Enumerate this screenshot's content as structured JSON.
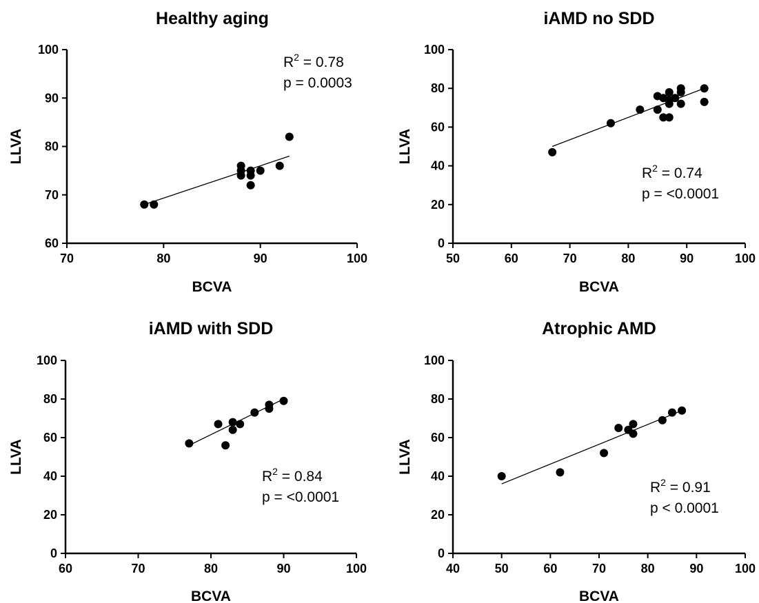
{
  "chart_data": [
    {
      "type": "scatter",
      "title": "Healthy aging",
      "xlabel": "BCVA",
      "ylabel": "LLVA",
      "xlim": [
        70,
        100
      ],
      "ylim": [
        60,
        100
      ],
      "xticks": [
        70,
        80,
        90,
        100
      ],
      "yticks": [
        60,
        70,
        80,
        90,
        100
      ],
      "points": [
        [
          78,
          68
        ],
        [
          79,
          68
        ],
        [
          88,
          74
        ],
        [
          88,
          75
        ],
        [
          88,
          76
        ],
        [
          89,
          72
        ],
        [
          89,
          74
        ],
        [
          89,
          75
        ],
        [
          90,
          75
        ],
        [
          92,
          76
        ],
        [
          93,
          82
        ]
      ],
      "fit": {
        "x1": 78,
        "y1": 68,
        "x2": 93,
        "y2": 78
      },
      "r2_label": "R",
      "r2_sup": "2",
      "r2_value": " = 0.78",
      "p_text": "p = 0.0003"
    },
    {
      "type": "scatter",
      "title": "iAMD no SDD",
      "xlabel": "BCVA",
      "ylabel": "LLVA",
      "xlim": [
        50,
        100
      ],
      "ylim": [
        0,
        100
      ],
      "xticks": [
        50,
        60,
        70,
        80,
        90,
        100
      ],
      "yticks": [
        0,
        20,
        40,
        60,
        80,
        100
      ],
      "points": [
        [
          67,
          47
        ],
        [
          77,
          62
        ],
        [
          82,
          69
        ],
        [
          85,
          69
        ],
        [
          85,
          76
        ],
        [
          86,
          65
        ],
        [
          86,
          75
        ],
        [
          87,
          65
        ],
        [
          87,
          72
        ],
        [
          87,
          74
        ],
        [
          87,
          78
        ],
        [
          88,
          75
        ],
        [
          89,
          72
        ],
        [
          89,
          78
        ],
        [
          89,
          80
        ],
        [
          93,
          73
        ],
        [
          93,
          80
        ]
      ],
      "fit": {
        "x1": 67,
        "y1": 50,
        "x2": 93,
        "y2": 80
      },
      "r2_label": "R",
      "r2_sup": "2",
      "r2_value": " = 0.74",
      "p_text": "p = <0.0001"
    },
    {
      "type": "scatter",
      "title": "iAMD with SDD",
      "xlabel": "BCVA",
      "ylabel": "LLVA",
      "xlim": [
        60,
        100
      ],
      "ylim": [
        0,
        100
      ],
      "xticks": [
        60,
        70,
        80,
        90,
        100
      ],
      "yticks": [
        0,
        20,
        40,
        60,
        80,
        100
      ],
      "points": [
        [
          77,
          57
        ],
        [
          81,
          67
        ],
        [
          82,
          56
        ],
        [
          83,
          64
        ],
        [
          83,
          68
        ],
        [
          84,
          67
        ],
        [
          86,
          73
        ],
        [
          88,
          75
        ],
        [
          88,
          77
        ],
        [
          90,
          79
        ]
      ],
      "fit": {
        "x1": 77,
        "y1": 56,
        "x2": 90,
        "y2": 80
      },
      "r2_label": "R",
      "r2_sup": "2",
      "r2_value": " = 0.84",
      "p_text": "p = <0.0001"
    },
    {
      "type": "scatter",
      "title": "Atrophic AMD",
      "xlabel": "BCVA",
      "ylabel": "LLVA",
      "xlim": [
        40,
        100
      ],
      "ylim": [
        0,
        100
      ],
      "xticks": [
        40,
        50,
        60,
        70,
        80,
        90,
        100
      ],
      "yticks": [
        0,
        20,
        40,
        60,
        80,
        100
      ],
      "points": [
        [
          50,
          40
        ],
        [
          62,
          42
        ],
        [
          71,
          52
        ],
        [
          74,
          65
        ],
        [
          76,
          64
        ],
        [
          77,
          62
        ],
        [
          77,
          67
        ],
        [
          83,
          69
        ],
        [
          85,
          73
        ],
        [
          87,
          74
        ]
      ],
      "fit": {
        "x1": 50,
        "y1": 36,
        "x2": 87,
        "y2": 74
      },
      "r2_label": "R",
      "r2_sup": "2",
      "r2_value": " = 0.91",
      "p_text": "p < 0.0001"
    }
  ]
}
